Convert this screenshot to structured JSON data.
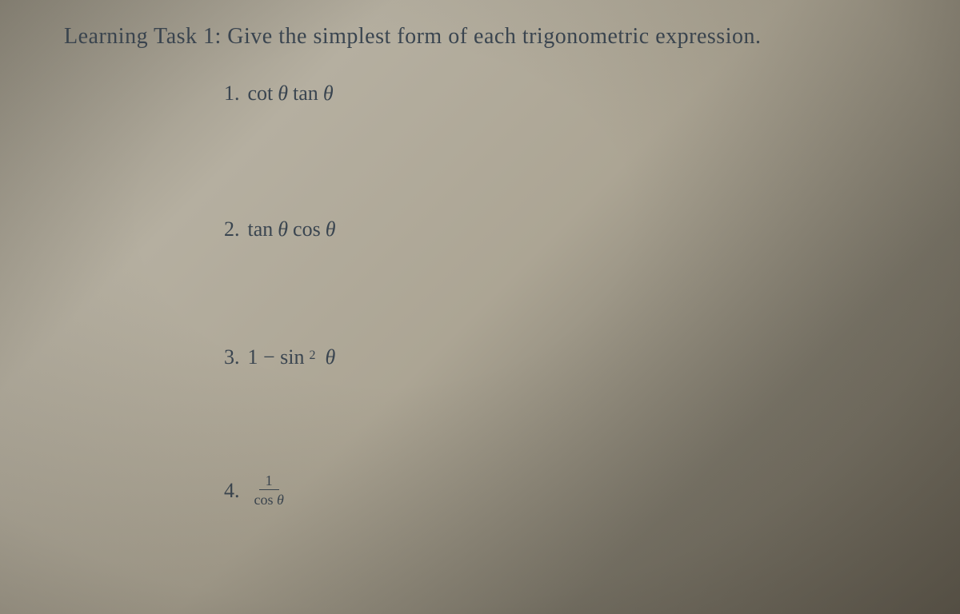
{
  "page": {
    "background_gradient": [
      "#8a8578",
      "#b5afa0",
      "#aca594",
      "#7a7568",
      "#6b6558"
    ],
    "text_color": "#3a4550",
    "title_fontsize": 28,
    "problem_fontsize": 26,
    "font_family": "Georgia, Times New Roman, serif"
  },
  "task": {
    "title": "Learning Task 1: Give the simplest form of each trigonometric expression."
  },
  "problems": [
    {
      "number": "1.",
      "expression_parts": [
        "cot ",
        "θ",
        " tan ",
        "θ"
      ]
    },
    {
      "number": "2.",
      "expression_parts": [
        "tan ",
        "θ",
        " cos ",
        "θ"
      ]
    },
    {
      "number": "3.",
      "expression_parts": [
        "1 − sin",
        "2",
        " ",
        "θ"
      ],
      "has_superscript": true
    },
    {
      "number": "4.",
      "fraction": {
        "numerator": "1",
        "denominator_parts": [
          "cos ",
          "θ"
        ]
      }
    }
  ]
}
